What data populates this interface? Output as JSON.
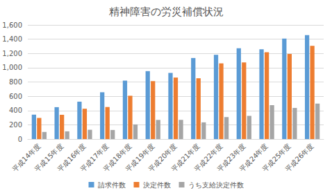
{
  "chart_data": {
    "type": "bar",
    "title": "精神障害の労災補償状況",
    "categories": [
      "平成14年度",
      "平成15年度",
      "平成16年度",
      "平成17年度",
      "平成18年度",
      "平成19年度",
      "平成20年度",
      "平成21年度",
      "平成22年度",
      "平成23年度",
      "平成24年度",
      "平成25年度",
      "平成26年度"
    ],
    "series": [
      {
        "name": "請求件数",
        "color": "#5b9bd5",
        "values": [
          341,
          447,
          524,
          656,
          819,
          952,
          927,
          1136,
          1181,
          1272,
          1257,
          1409,
          1456
        ]
      },
      {
        "name": "決定件数",
        "color": "#ed7d31",
        "values": [
          296,
          340,
          425,
          449,
          607,
          812,
          862,
          852,
          1061,
          1074,
          1217,
          1193,
          1307
        ]
      },
      {
        "name": "うち支給決定件数",
        "color": "#a5a5a5",
        "values": [
          100,
          108,
          130,
          127,
          205,
          268,
          269,
          234,
          308,
          325,
          475,
          436,
          497
        ]
      }
    ],
    "ylim": [
      0,
      1600
    ],
    "yticks": [
      0,
      200,
      400,
      600,
      800,
      1000,
      1200,
      1400,
      1600
    ],
    "grid": true,
    "legend": "bottom"
  }
}
